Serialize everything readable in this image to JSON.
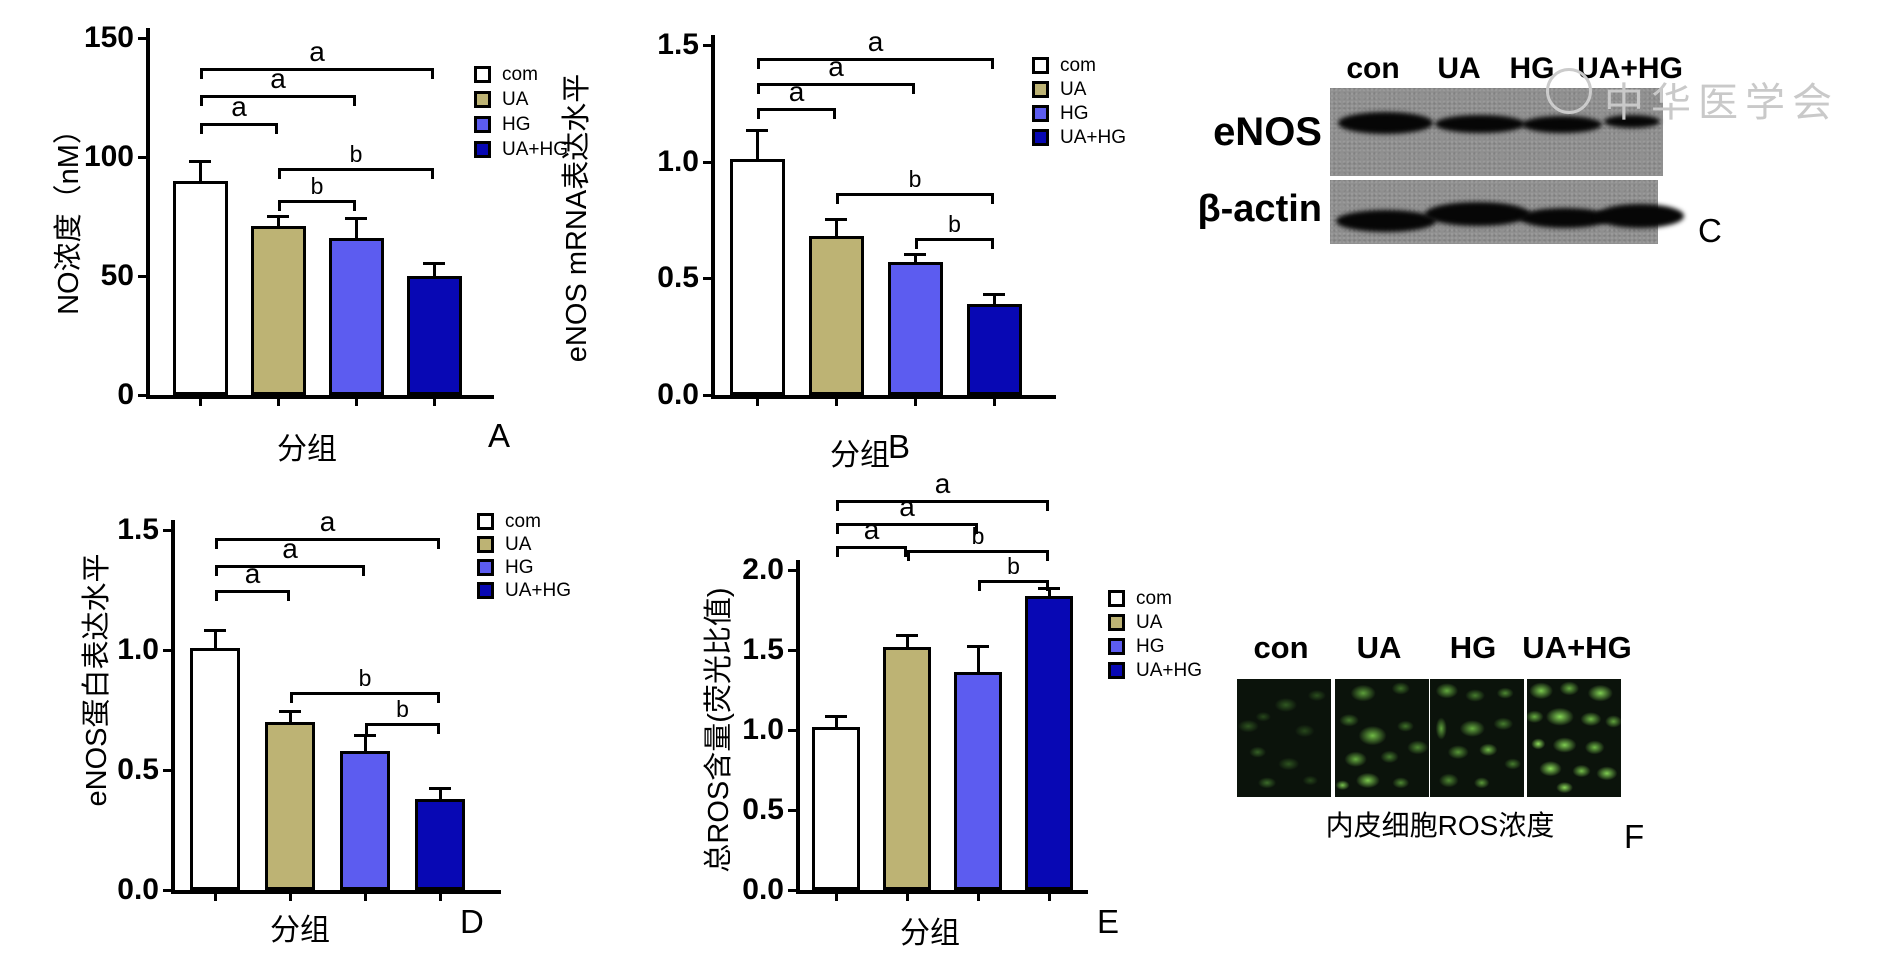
{
  "figure": {
    "background": "#ffffff",
    "group_colors": [
      "#ffffff",
      "#bdb374",
      "#5c5cf0",
      "#0808b4"
    ],
    "group_labels": [
      "com",
      "UA",
      "HG",
      "UA+HG"
    ]
  },
  "chart_data": [
    {
      "id": "A",
      "type": "bar",
      "panel_letter": "A",
      "title": "",
      "xlabel": "分组",
      "ylabel": "NO浓度（nM）",
      "categories": [
        "com",
        "UA",
        "HG",
        "UA+HG"
      ],
      "values": [
        90,
        71,
        66,
        50
      ],
      "errors": [
        8,
        4,
        8,
        5
      ],
      "ylim": [
        0,
        150
      ],
      "yticks": [
        0,
        50,
        100,
        150
      ],
      "ytick_labels": [
        "0",
        "50",
        "100",
        "150"
      ],
      "bar_colors": [
        "#ffffff",
        "#bdb374",
        "#5c5cf0",
        "#0808b4"
      ],
      "legend": [
        "com",
        "UA",
        "HG",
        "UA+HG"
      ],
      "legend_position": "right",
      "grid": false,
      "brackets": [
        {
          "from": 0,
          "to": 3,
          "label": "a"
        },
        {
          "from": 0,
          "to": 2,
          "label": "a"
        },
        {
          "from": 0,
          "to": 1,
          "label": "a"
        },
        {
          "from": 1,
          "to": 3,
          "label": "b"
        },
        {
          "from": 1,
          "to": 2,
          "label": "b"
        }
      ]
    },
    {
      "id": "B",
      "type": "bar",
      "panel_letter": "B",
      "title": "",
      "xlabel": "分组",
      "ylabel": "eNOS mRNA表达水平",
      "categories": [
        "com",
        "UA",
        "HG",
        "UA+HG"
      ],
      "values": [
        1.01,
        0.68,
        0.57,
        0.39
      ],
      "errors": [
        0.12,
        0.07,
        0.03,
        0.04
      ],
      "ylim": [
        0,
        1.5
      ],
      "yticks": [
        0,
        0.5,
        1.0,
        1.5
      ],
      "ytick_labels": [
        "0.0",
        "0.5",
        "1.0",
        "1.5"
      ],
      "bar_colors": [
        "#ffffff",
        "#bdb374",
        "#5c5cf0",
        "#0808b4"
      ],
      "legend": [
        "com",
        "UA",
        "HG",
        "UA+HG"
      ],
      "legend_position": "right",
      "grid": false,
      "brackets": [
        {
          "from": 0,
          "to": 3,
          "label": "a"
        },
        {
          "from": 0,
          "to": 2,
          "label": "a"
        },
        {
          "from": 0,
          "to": 1,
          "label": "a"
        },
        {
          "from": 1,
          "to": 3,
          "label": "b"
        },
        {
          "from": 2,
          "to": 3,
          "label": "b"
        }
      ]
    },
    {
      "id": "D",
      "type": "bar",
      "panel_letter": "D",
      "title": "",
      "xlabel": "分组",
      "ylabel": "eNOS蛋白表达水平",
      "categories": [
        "com",
        "UA",
        "HG",
        "UA+HG"
      ],
      "values": [
        1.01,
        0.7,
        0.58,
        0.38
      ],
      "errors": [
        0.07,
        0.04,
        0.06,
        0.04
      ],
      "ylim": [
        0,
        1.5
      ],
      "yticks": [
        0,
        0.5,
        1.0,
        1.5
      ],
      "ytick_labels": [
        "0.0",
        "0.5",
        "1.0",
        "1.5"
      ],
      "bar_colors": [
        "#ffffff",
        "#bdb374",
        "#5c5cf0",
        "#0808b4"
      ],
      "legend": [
        "com",
        "UA",
        "HG",
        "UA+HG"
      ],
      "legend_position": "right",
      "grid": false,
      "brackets": [
        {
          "from": 0,
          "to": 3,
          "label": "a"
        },
        {
          "from": 0,
          "to": 2,
          "label": "a"
        },
        {
          "from": 0,
          "to": 1,
          "label": "a"
        },
        {
          "from": 1,
          "to": 3,
          "label": "b"
        },
        {
          "from": 2,
          "to": 3,
          "label": "b"
        }
      ]
    },
    {
      "id": "E",
      "type": "bar",
      "panel_letter": "E",
      "title": "",
      "xlabel": "分组",
      "ylabel": "总ROS含量(荧光比值)",
      "categories": [
        "com",
        "UA",
        "HG",
        "UA+HG"
      ],
      "values": [
        1.02,
        1.52,
        1.36,
        1.84
      ],
      "errors": [
        0.06,
        0.07,
        0.16,
        0.04
      ],
      "ylim": [
        0,
        2.0
      ],
      "yticks": [
        0,
        0.5,
        1.0,
        1.5,
        2.0
      ],
      "ytick_labels": [
        "0.0",
        "0.5",
        "1.0",
        "1.5",
        "2.0"
      ],
      "bar_colors": [
        "#ffffff",
        "#bdb374",
        "#5c5cf0",
        "#0808b4"
      ],
      "legend": [
        "com",
        "UA",
        "HG",
        "UA+HG"
      ],
      "legend_position": "right",
      "grid": false,
      "brackets": [
        {
          "from": 0,
          "to": 3,
          "label": "a"
        },
        {
          "from": 0,
          "to": 2,
          "label": "a"
        },
        {
          "from": 0,
          "to": 1,
          "label": "a"
        },
        {
          "from": 1,
          "to": 3,
          "label": "b"
        },
        {
          "from": 2,
          "to": 3,
          "label": "b"
        }
      ]
    }
  ],
  "panels": {
    "C": {
      "letter": "C",
      "lane_labels": [
        "con",
        "UA",
        "HG",
        "UA+HG"
      ],
      "row_labels": [
        "eNOS",
        "β-actin"
      ],
      "watermark": "中华医学会"
    },
    "F": {
      "letter": "F",
      "lane_labels": [
        "con",
        "UA",
        "HG",
        "UA+HG"
      ],
      "caption": "内皮细胞ROS浓度"
    }
  }
}
